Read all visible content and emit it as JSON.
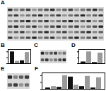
{
  "chart_data": [
    {
      "type": "blot",
      "title": "A"
    },
    {
      "type": "bar",
      "title": "B",
      "categories": [
        null,
        null
      ],
      "ylim": [
        0,
        1.2
      ],
      "yticks": [
        0,
        0.5,
        1
      ],
      "tick_labels": false,
      "series": [
        {
          "color": "#111111",
          "values": [
            1.0,
            0.25
          ]
        },
        {
          "color": "#9a9a9a",
          "values": [
            0.2,
            0.95
          ]
        }
      ]
    },
    {
      "type": "blot",
      "title": "C"
    },
    {
      "type": "bar",
      "title": "D",
      "categories": [
        null,
        null
      ],
      "ylim": [
        0,
        1.2
      ],
      "yticks": [
        0,
        0.5,
        1
      ],
      "tick_labels": false,
      "series": [
        {
          "color": "#111111",
          "values": [
            0.15,
            0.1
          ]
        },
        {
          "color": "#9a9a9a",
          "values": [
            1.0,
            0.9
          ]
        }
      ]
    },
    {
      "type": "blot",
      "title": "E"
    },
    {
      "type": "bar",
      "title": "F",
      "categories": [
        null,
        null,
        null,
        null,
        null
      ],
      "ylim": [
        0,
        1.2
      ],
      "yticks": [
        0,
        0.5,
        1
      ],
      "tick_labels": false,
      "series": [
        {
          "color": "#111111",
          "values": [
            0.1,
            0.15,
            0.9,
            0.2,
            0.1
          ]
        },
        {
          "color": "#9a9a9a",
          "values": [
            0.2,
            1.0,
            0.3,
            0.95,
            0.85
          ]
        }
      ]
    }
  ]
}
